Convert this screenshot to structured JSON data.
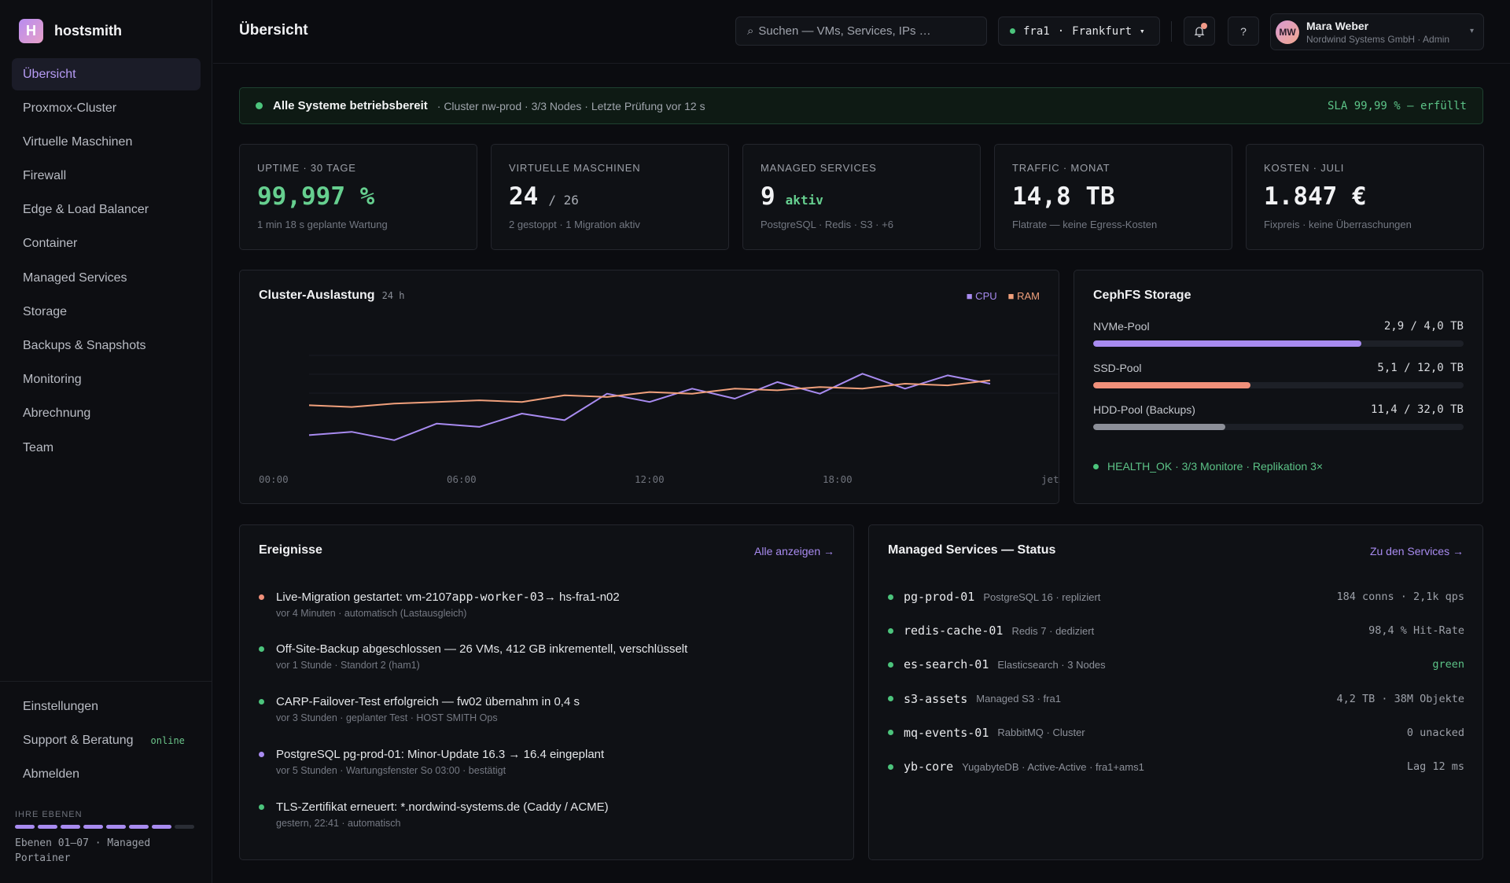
{
  "brand": {
    "logo_glyph": "H",
    "name": "hostsmith"
  },
  "sidebar": {
    "items": [
      {
        "label": "Übersicht",
        "active": true
      },
      {
        "label": "Proxmox-Cluster"
      },
      {
        "label": "Virtuelle Maschinen"
      },
      {
        "label": "Firewall"
      },
      {
        "label": "Edge & Load Balancer"
      },
      {
        "label": "Container"
      },
      {
        "label": "Managed Services"
      },
      {
        "label": "Storage"
      },
      {
        "label": "Backups & Snapshots"
      },
      {
        "label": "Monitoring"
      },
      {
        "label": "Abrechnung"
      },
      {
        "label": "Team"
      }
    ],
    "bottom": {
      "settings": "Einstellungen",
      "support": "Support & Beratung",
      "support_badge": "online",
      "logout": "Abmelden"
    },
    "levels": {
      "title": "IHRE EBENEN",
      "active": 7,
      "total": 8,
      "text": "Ebenen 01–07 · Managed Portainer"
    }
  },
  "header": {
    "title": "Übersicht",
    "search_placeholder": "Suchen — VMs, Services, IPs …",
    "search_icon": "⌕",
    "region_code": "fra1",
    "region_sep": "·",
    "region_name": "Frankfurt",
    "region_caret": "▾",
    "notifications_icon": "bell-icon",
    "help_label": "?",
    "user": {
      "initials": "MW",
      "name": "Mara Weber",
      "org": "Nordwind Systems GmbH · Admin",
      "caret": "▾"
    }
  },
  "banner": {
    "title": "Alle Systeme betriebsbereit",
    "detail": "· Cluster nw-prod · 3/3 Nodes · Letzte Prüfung vor 12 s",
    "sla": "SLA 99,99 % — erfüllt"
  },
  "kpis": [
    {
      "label": "UPTIME · 30 TAGE",
      "value": "99,997 %",
      "suffix": "",
      "sub": "1 min 18 s geplante Wartung"
    },
    {
      "label": "VIRTUELLE MASCHINEN",
      "value": "24",
      "suffix": "/ 26",
      "sub": "2 gestoppt · 1 Migration aktiv"
    },
    {
      "label": "MANAGED SERVICES",
      "value": "9",
      "suffix": "aktiv",
      "sub": "PostgreSQL · Redis · S3 · +6"
    },
    {
      "label": "TRAFFIC · MONAT",
      "value": "14,8 TB",
      "suffix": "",
      "sub": "Flatrate — keine Egress-Kosten"
    },
    {
      "label": "KOSTEN · JULI",
      "value": "1.847 €",
      "suffix": "",
      "sub": "Fixpreis · keine Überraschungen"
    }
  ],
  "cluster_chart": {
    "title": "Cluster-Auslastung",
    "range": "24 h",
    "legend_cpu": "■ CPU",
    "legend_ram": "■ RAM",
    "colors": {
      "cpu": "#a88bf0",
      "ram": "#f0a07c"
    },
    "x_tick_labels": [
      "00:00",
      "06:00",
      "12:00",
      "18:00",
      "jetzt"
    ]
  },
  "chart_data": {
    "type": "line",
    "title": "Cluster-Auslastung",
    "subtitle": "24 h",
    "x_tick_labels": [
      "00:00",
      "06:00",
      "12:00",
      "18:00",
      "jetzt"
    ],
    "series": [
      {
        "name": "CPU",
        "values": [
          30,
          32,
          27,
          37,
          35,
          43,
          39,
          55,
          50,
          58,
          52,
          62,
          55,
          67,
          58,
          66,
          61
        ]
      },
      {
        "name": "RAM",
        "values": [
          48,
          47,
          49,
          50,
          51,
          50,
          54,
          53,
          56,
          55,
          58,
          57,
          59,
          58,
          61,
          60,
          63
        ]
      }
    ],
    "ylim": [
      0,
      100
    ],
    "grid": true
  },
  "storage": {
    "title": "CephFS Storage",
    "pools": [
      {
        "name": "NVMe-Pool",
        "value": "2,9 / 4,0 TB",
        "fraction": 0.725,
        "color": "#a88bf0"
      },
      {
        "name": "SSD-Pool",
        "value": "5,1 / 12,0 TB",
        "fraction": 0.425,
        "color": "#f0907a"
      },
      {
        "name": "HDD-Pool (Backups)",
        "value": "11,4 / 32,0 TB",
        "fraction": 0.356,
        "color": "#8c8f98"
      }
    ],
    "health": "HEALTH_OK · 3/3 Monitore · Replikation 3×"
  },
  "events": {
    "title": "Ereignisse",
    "link": "Alle anzeigen →",
    "items": [
      {
        "title_a": "Live-Migration gestartet: vm-2107 ",
        "title_mono": "app-worker-03",
        "title_b": " → hs-fra1-n02",
        "meta": "vor 4 Minuten · automatisch (Lastausgleich)",
        "color": "#f0907a"
      },
      {
        "title_a": "Off-Site-Backup abgeschlossen — 26 VMs, 412 GB inkrementell, verschlüsselt",
        "title_mono": "",
        "title_b": "",
        "meta": "vor 1 Stunde · Standort 2 (ham1)",
        "color": "#4cc47c"
      },
      {
        "title_a": "CARP-Failover-Test erfolgreich — fw02 übernahm in 0,4 s",
        "title_mono": "",
        "title_b": "",
        "meta": "vor 3 Stunden · geplanter Test · HOST SMITH Ops",
        "color": "#4cc47c"
      },
      {
        "title_a": "PostgreSQL pg-prod-01: Minor-Update 16.3 → 16.4 eingeplant",
        "title_mono": "",
        "title_b": "",
        "meta": "vor 5 Stunden · Wartungsfenster So 03:00 · bestätigt",
        "color": "#a88bf0"
      },
      {
        "title_a": "TLS-Zertifikat erneuert: *.nordwind-systems.de (Caddy / ACME)",
        "title_mono": "",
        "title_b": "",
        "meta": "gestern, 22:41 · automatisch",
        "color": "#4cc47c"
      }
    ]
  },
  "services": {
    "title": "Managed Services — Status",
    "link": "Zu den Services →",
    "items": [
      {
        "name": "pg-prod-01",
        "desc": "PostgreSQL 16 · repliziert",
        "metric": "184 conns · 2,1k qps",
        "metric_green": false
      },
      {
        "name": "redis-cache-01",
        "desc": "Redis 7 · dediziert",
        "metric": "98,4 % Hit-Rate",
        "metric_green": false
      },
      {
        "name": "es-search-01",
        "desc": "Elasticsearch · 3 Nodes",
        "metric": "green",
        "metric_green": true
      },
      {
        "name": "s3-assets",
        "desc": "Managed S3 · fra1",
        "metric": "4,2 TB · 38M Objekte",
        "metric_green": false
      },
      {
        "name": "mq-events-01",
        "desc": "RabbitMQ · Cluster",
        "metric": "0 unacked",
        "metric_green": false
      },
      {
        "name": "yb-core",
        "desc": "YugabyteDB · Active-Active · fra1+ams1",
        "metric": "Lag 12 ms",
        "metric_green": false
      }
    ]
  }
}
